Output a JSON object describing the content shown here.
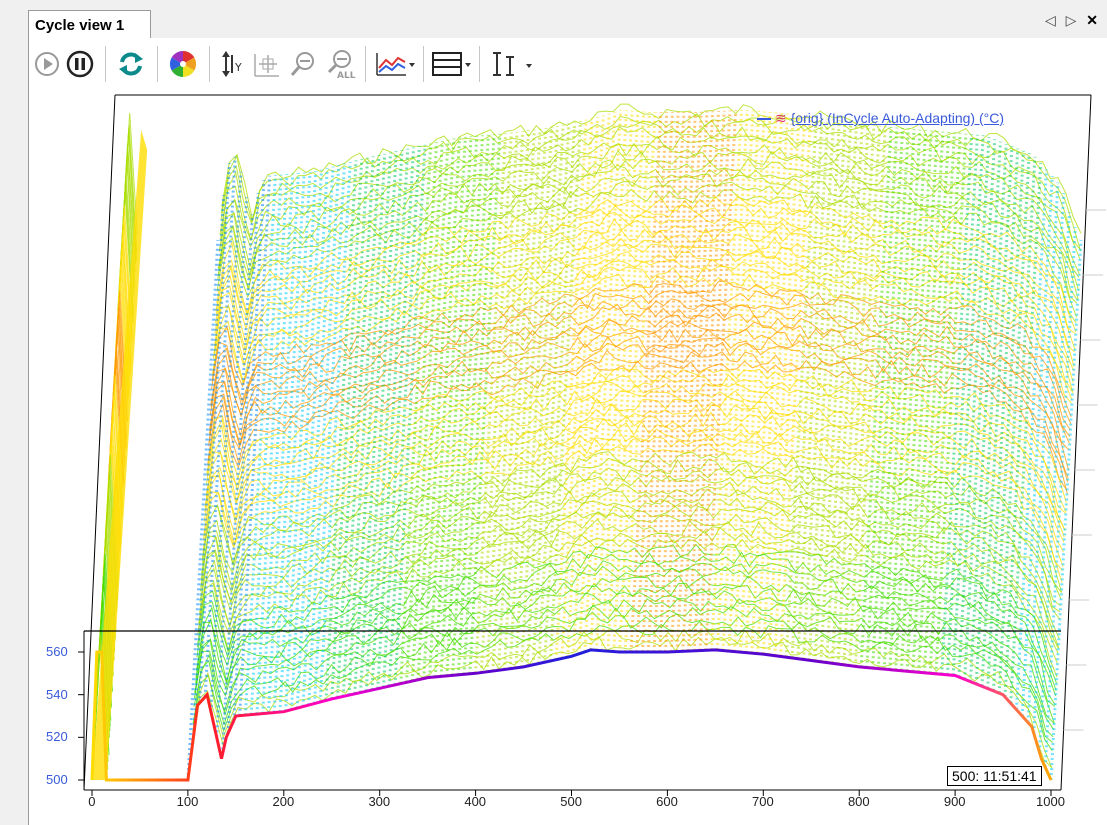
{
  "tab": {
    "title": "Cycle view 1",
    "nav": "◁ ▷",
    "close": "✕"
  },
  "toolbar": {
    "buttons": [
      {
        "id": "play",
        "icon": "play-icon"
      },
      {
        "id": "pause",
        "icon": "pause-icon"
      },
      {
        "id": "refresh",
        "icon": "refresh-icon"
      },
      {
        "id": "palette",
        "icon": "color-wheel-icon"
      },
      {
        "id": "autoscale-y",
        "icon": "autoscale-y-icon"
      },
      {
        "id": "pan",
        "icon": "pan-icon"
      },
      {
        "id": "zoom-out",
        "icon": "zoom-out-icon"
      },
      {
        "id": "zoom-all",
        "icon": "zoom-all-icon"
      },
      {
        "id": "chart-style",
        "icon": "line-chart-icon"
      },
      {
        "id": "layout",
        "icon": "layout-icon"
      },
      {
        "id": "cursor",
        "icon": "cursor-icon"
      }
    ]
  },
  "legend": {
    "label": "{orig} (InCycle Auto-Adapting) (°C)",
    "color": "#3a5adb"
  },
  "timestamp": "500: 11:51:41",
  "chart_data": {
    "type": "area",
    "x_ticks": [
      "0",
      "100",
      "200",
      "300",
      "400",
      "500",
      "600",
      "700",
      "800",
      "900",
      "1000"
    ],
    "y_ticks": [
      "500",
      "520",
      "540",
      "560"
    ],
    "xlim": [
      0,
      1000
    ],
    "front_profile": {
      "x": [
        0,
        5,
        10,
        15,
        100,
        110,
        120,
        130,
        135,
        140,
        150,
        200,
        250,
        300,
        350,
        400,
        450,
        500,
        520,
        550,
        600,
        650,
        700,
        750,
        800,
        850,
        900,
        950,
        980,
        990,
        1000
      ],
      "y": [
        500,
        560,
        560,
        500,
        500,
        535,
        540,
        520,
        510,
        520,
        530,
        532,
        538,
        543,
        548,
        550,
        553,
        558,
        561,
        560,
        560,
        561,
        559,
        556,
        553,
        551,
        549,
        540,
        525,
        510,
        500
      ]
    },
    "color_scale": [
      "#0000cc",
      "#0088ff",
      "#00ccff",
      "#00cc66",
      "#44dd00",
      "#aadd00",
      "#ffdd00",
      "#ff9900",
      "#ff3300",
      "#ff00cc"
    ]
  }
}
